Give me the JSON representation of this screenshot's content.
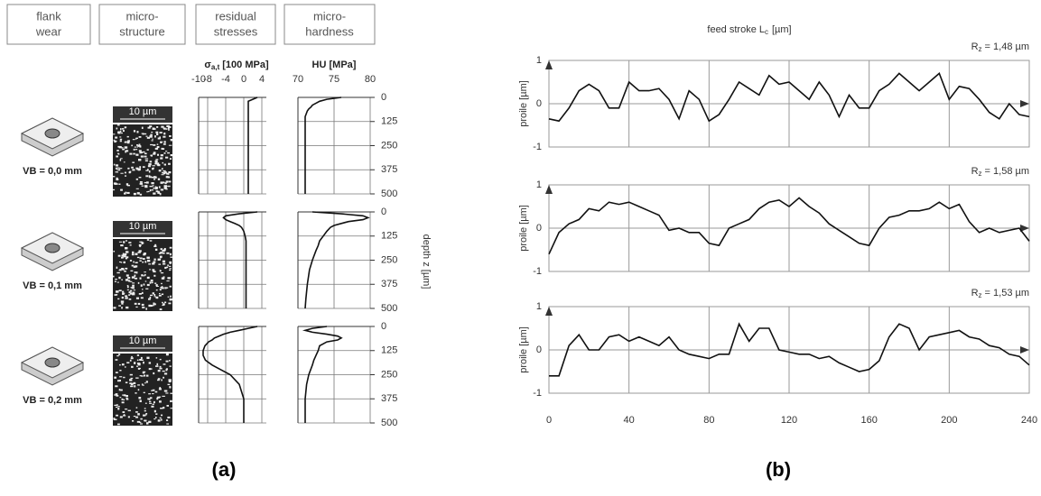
{
  "panel_a": {
    "label": "(a)",
    "headers": [
      [
        "flank",
        "wear"
      ],
      [
        "micro-",
        "structure"
      ],
      [
        "residual",
        "stresses"
      ],
      [
        "micro-",
        "hardness"
      ]
    ],
    "stress_axis": {
      "symbol": "σ",
      "subscript": "a,t",
      "unit": "[100 MPa]",
      "xlim": [
        -10,
        5
      ],
      "xticks": [
        -10,
        -8,
        -4,
        0,
        4
      ]
    },
    "hardness_axis": {
      "label": "HU [MPa]",
      "xlim": [
        70,
        80
      ],
      "xticks": [
        70,
        75,
        80
      ]
    },
    "depth_axis": {
      "label": "depth z [µm]",
      "ylim": [
        0,
        500
      ],
      "yticks": [
        0,
        125,
        250,
        375,
        500
      ]
    },
    "depth": [
      0,
      10,
      20,
      30,
      40,
      50,
      60,
      70,
      80,
      100,
      125,
      150,
      175,
      200,
      250,
      300,
      375,
      450,
      500
    ],
    "rows": [
      {
        "flank_wear": "VB = 0,0 mm",
        "scale_bar": "10 µm",
        "stress": [
          3,
          2,
          1,
          1,
          1,
          1,
          1,
          1,
          1,
          1,
          1,
          1,
          1,
          1,
          1,
          1,
          1,
          1,
          1
        ],
        "hardness": [
          76,
          74,
          73,
          72.5,
          72,
          71.8,
          71.5,
          71.3,
          71.2,
          71,
          71,
          71,
          71,
          71,
          71,
          71,
          71,
          71,
          71
        ]
      },
      {
        "flank_wear": "VB = 0,1 mm",
        "scale_bar": "10 µm",
        "stress": [
          3,
          -1,
          -4,
          -4.5,
          -4,
          -3,
          -2,
          -1,
          -0.5,
          0,
          0.3,
          0.5,
          0.5,
          0.5,
          0.5,
          0.5,
          0.5,
          0.5,
          0.5
        ],
        "hardness": [
          72,
          76,
          79,
          79.7,
          79,
          77,
          76,
          75,
          74.5,
          74,
          73.5,
          73,
          72.8,
          72.5,
          72,
          71.6,
          71.3,
          71.1,
          71
        ]
      },
      {
        "flank_wear": "VB = 0,2 mm",
        "scale_bar": "10 µm",
        "stress": [
          3,
          1,
          -1,
          -3,
          -4.5,
          -5.5,
          -6.5,
          -7,
          -7.8,
          -8.6,
          -9,
          -9,
          -8.5,
          -7,
          -3,
          -1,
          0,
          0,
          0
        ],
        "hardness": [
          74,
          72,
          71,
          72,
          74,
          75.5,
          76,
          75.5,
          74,
          73,
          72.8,
          72.5,
          72.2,
          72,
          71.5,
          71.2,
          71,
          71,
          71
        ]
      }
    ]
  },
  "panel_b": {
    "label": "(b)",
    "title": {
      "text": "feed stroke L",
      "subscript": "c",
      "unit": "[µm]"
    },
    "ylabel": "proile [µm]",
    "xlim": [
      0,
      240
    ],
    "xticks": [
      0,
      40,
      80,
      120,
      160,
      200,
      240
    ],
    "ylim": [
      -1,
      1
    ],
    "yticks": [
      1,
      0,
      -1
    ],
    "x": [
      0,
      5,
      10,
      15,
      20,
      25,
      30,
      35,
      40,
      45,
      50,
      55,
      60,
      65,
      70,
      75,
      80,
      85,
      90,
      95,
      100,
      105,
      110,
      115,
      120,
      125,
      130,
      135,
      140,
      145,
      150,
      155,
      160,
      165,
      170,
      175,
      180,
      185,
      190,
      195,
      200,
      205,
      210,
      215,
      220,
      225,
      230,
      235,
      240
    ],
    "plots": [
      {
        "rz": {
          "symbol": "R",
          "subscript": "z",
          "text": "= 1,48 µm"
        },
        "values": [
          -0.35,
          -0.4,
          -0.1,
          0.3,
          0.45,
          0.3,
          -0.1,
          -0.1,
          0.5,
          0.3,
          0.3,
          0.35,
          0.1,
          -0.35,
          0.3,
          0.1,
          -0.4,
          -0.25,
          0.1,
          0.5,
          0.35,
          0.2,
          0.65,
          0.45,
          0.5,
          0.3,
          0.1,
          0.5,
          0.2,
          -0.3,
          0.2,
          -0.1,
          -0.1,
          0.3,
          0.45,
          0.7,
          0.5,
          0.3,
          0.5,
          0.7,
          0.1,
          0.4,
          0.35,
          0.1,
          -0.2,
          -0.35,
          0,
          -0.25,
          -0.3
        ]
      },
      {
        "rz": {
          "symbol": "R",
          "subscript": "z",
          "text": "= 1,58 µm"
        },
        "values": [
          -0.6,
          -0.1,
          0.1,
          0.2,
          0.45,
          0.4,
          0.6,
          0.55,
          0.6,
          0.5,
          0.4,
          0.3,
          -0.05,
          0,
          -0.1,
          -0.1,
          -0.35,
          -0.4,
          0,
          0.1,
          0.2,
          0.45,
          0.6,
          0.65,
          0.5,
          0.7,
          0.5,
          0.35,
          0.1,
          -0.05,
          -0.2,
          -0.35,
          -0.4,
          0,
          0.25,
          0.3,
          0.4,
          0.4,
          0.45,
          0.6,
          0.45,
          0.55,
          0.15,
          -0.1,
          0,
          -0.1,
          -0.05,
          0,
          -0.3
        ]
      },
      {
        "rz": {
          "symbol": "R",
          "subscript": "z",
          "text": "= 1,53 µm"
        },
        "values": [
          -0.6,
          -0.6,
          0.1,
          0.35,
          0,
          0,
          0.3,
          0.35,
          0.2,
          0.3,
          0.2,
          0.1,
          0.3,
          0,
          -0.1,
          -0.15,
          -0.2,
          -0.1,
          -0.1,
          0.6,
          0.2,
          0.5,
          0.5,
          0,
          -0.05,
          -0.1,
          -0.1,
          -0.2,
          -0.15,
          -0.3,
          -0.4,
          -0.5,
          -0.45,
          -0.25,
          0.3,
          0.6,
          0.5,
          0,
          0.3,
          0.35,
          0.4,
          0.45,
          0.3,
          0.25,
          0.1,
          0.05,
          -0.1,
          -0.15,
          -0.35
        ]
      }
    ]
  }
}
